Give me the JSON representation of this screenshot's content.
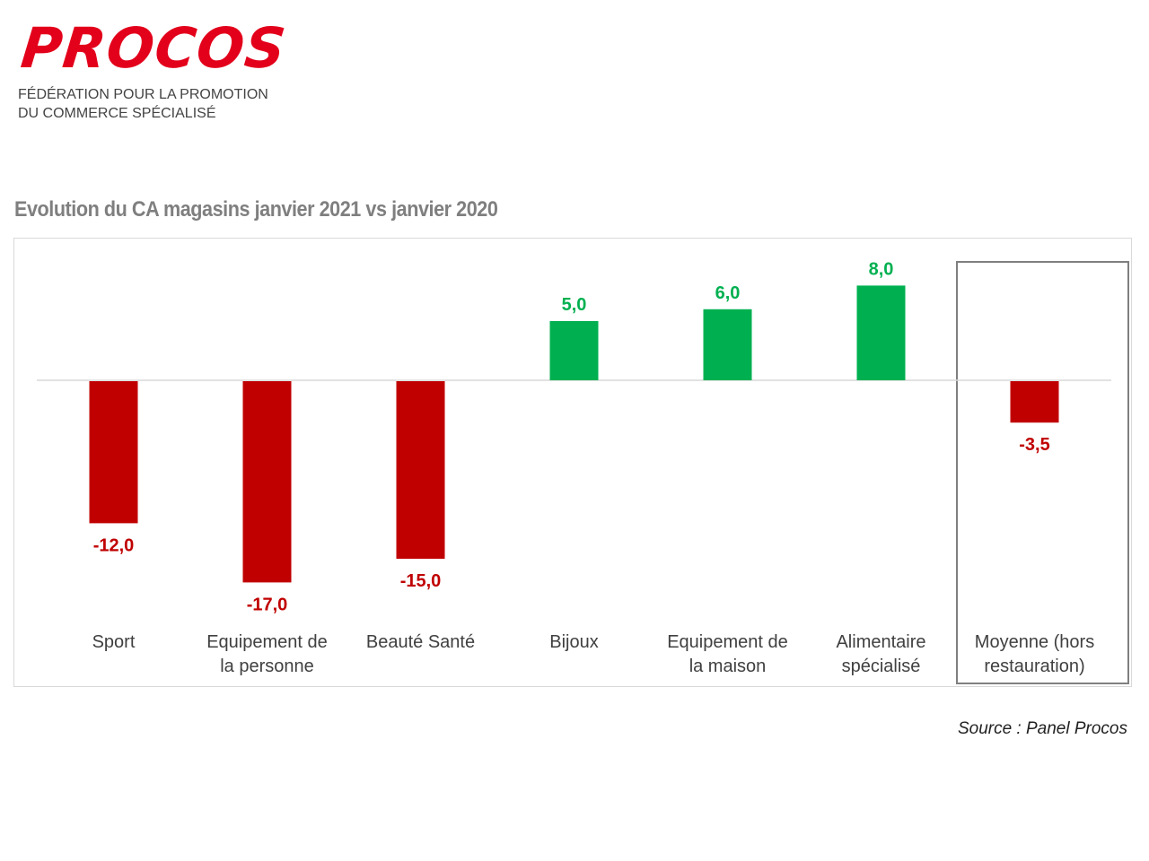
{
  "header": {
    "logo_text": "PROCOS",
    "tagline_line1": "FÉDÉRATION POUR LA PROMOTION",
    "tagline_line2": "DU COMMERCE SPÉCIALISÉ"
  },
  "chart_title": "Evolution du CA magasins janvier 2021 vs janvier 2020",
  "source": "Source : Panel Procos",
  "colors": {
    "logo": "#e3001b",
    "positive": "#00b050",
    "negative": "#c00000"
  },
  "chart_data": {
    "type": "bar",
    "title": "Evolution du CA magasins janvier 2021 vs janvier 2020",
    "categories": [
      [
        "Sport"
      ],
      [
        "Equipement de",
        "la personne"
      ],
      [
        "Beauté Santé"
      ],
      [
        "Bijoux"
      ],
      [
        "Equipement de",
        "la maison"
      ],
      [
        "Alimentaire",
        "spécialisé"
      ],
      [
        "Moyenne (hors",
        "restauration)"
      ]
    ],
    "values": [
      -12.0,
      -17.0,
      -15.0,
      5.0,
      6.0,
      8.0,
      -3.5
    ],
    "value_labels": [
      "-12,0",
      "-17,0",
      "-15,0",
      "5,0",
      "6,0",
      "8,0",
      "-3,5"
    ],
    "highlighted_category_index": 6,
    "ylim": [
      -17,
      8
    ],
    "grid": false,
    "legend": "none",
    "xlabel": "",
    "ylabel": ""
  }
}
